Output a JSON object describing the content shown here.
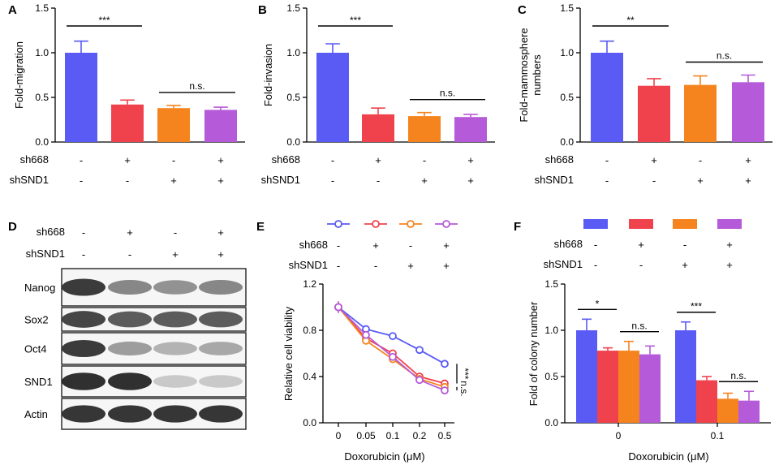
{
  "colors": {
    "blue": "#5a5af5",
    "red": "#f0424d",
    "orange": "#f5841f",
    "purple": "#b55ad8",
    "line_gray": "#6b6b6b"
  },
  "rows": {
    "sh668": "sh668",
    "shSND1": "shSND1"
  },
  "conditions": [
    {
      "sh668": "-",
      "shSND1": "-"
    },
    {
      "sh668": "+",
      "shSND1": "-"
    },
    {
      "sh668": "-",
      "shSND1": "+"
    },
    {
      "sh668": "+",
      "shSND1": "+"
    }
  ],
  "chart_data": [
    {
      "panel": "A",
      "type": "bar",
      "ylabel": "Fold-migration",
      "ylim": [
        0,
        1.5
      ],
      "yticks": [
        "0.0",
        "0.5",
        "1.0",
        "1.5"
      ],
      "values": [
        1.0,
        0.42,
        0.38,
        0.36
      ],
      "errors": [
        0.13,
        0.05,
        0.03,
        0.03
      ],
      "annotations": [
        {
          "text": "***",
          "from": 0,
          "to": 1
        },
        {
          "text": "n.s.",
          "from": 2,
          "to": 3
        }
      ]
    },
    {
      "panel": "B",
      "type": "bar",
      "ylabel": "Fold-invasion",
      "ylim": [
        0,
        1.5
      ],
      "yticks": [
        "0.0",
        "0.5",
        "1.0",
        "1.5"
      ],
      "values": [
        1.0,
        0.31,
        0.29,
        0.28
      ],
      "errors": [
        0.1,
        0.07,
        0.04,
        0.03
      ],
      "annotations": [
        {
          "text": "***",
          "from": 0,
          "to": 1
        },
        {
          "text": "n.s.",
          "from": 2,
          "to": 3
        }
      ]
    },
    {
      "panel": "C",
      "type": "bar",
      "ylabel_lines": [
        "Fold-mammosphere",
        "numbers"
      ],
      "ylim": [
        0,
        1.5
      ],
      "yticks": [
        "0.0",
        "0.5",
        "1.0",
        "1.5"
      ],
      "values": [
        1.0,
        0.63,
        0.64,
        0.67
      ],
      "errors": [
        0.13,
        0.08,
        0.1,
        0.08
      ],
      "annotations": [
        {
          "text": "**",
          "from": 0,
          "to": 1
        },
        {
          "text": "n.s.",
          "from": 2,
          "to": 3
        }
      ]
    },
    {
      "panel": "E",
      "type": "line",
      "xlabel": "Doxorubicin (μM)",
      "ylabel": "Relative cell viability",
      "categories": [
        "0",
        "0.05",
        "0.1",
        "0.2",
        "0.5"
      ],
      "ylim": [
        0,
        1.2
      ],
      "yticks": [
        "0.0",
        "0.4",
        "0.8",
        "1.2"
      ],
      "series": [
        {
          "values": [
            1.0,
            0.81,
            0.75,
            0.63,
            0.51
          ],
          "errors": [
            0.05,
            0.03,
            0.02,
            0.02,
            0.02
          ]
        },
        {
          "values": [
            1.0,
            0.73,
            0.6,
            0.4,
            0.34
          ],
          "errors": [
            0.05,
            0.03,
            0.02,
            0.02,
            0.02
          ]
        },
        {
          "values": [
            1.0,
            0.71,
            0.55,
            0.38,
            0.31
          ],
          "errors": [
            0.05,
            0.03,
            0.02,
            0.02,
            0.02
          ]
        },
        {
          "values": [
            1.0,
            0.76,
            0.57,
            0.37,
            0.28
          ],
          "errors": [
            0.05,
            0.03,
            0.02,
            0.02,
            0.02
          ]
        }
      ],
      "annotations": [
        {
          "text": "***"
        },
        {
          "text": "n.s."
        }
      ]
    },
    {
      "panel": "F",
      "type": "bar",
      "xlabel": "Doxorubicin (μM)",
      "ylabel": "Fold of colony number",
      "categories": [
        "0",
        "0.1"
      ],
      "ylim": [
        0,
        1.5
      ],
      "yticks": [
        "0.0",
        "0.5",
        "1.0",
        "1.5"
      ],
      "series": [
        {
          "values": [
            1.0,
            1.0
          ],
          "errors": [
            0.12,
            0.09
          ]
        },
        {
          "values": [
            0.78,
            0.46
          ],
          "errors": [
            0.03,
            0.04
          ]
        },
        {
          "values": [
            0.78,
            0.26
          ],
          "errors": [
            0.1,
            0.06
          ]
        },
        {
          "values": [
            0.74,
            0.24
          ],
          "errors": [
            0.09,
            0.1
          ]
        }
      ],
      "annotations": [
        {
          "text": "*",
          "group": 0,
          "from": 0,
          "to": 1
        },
        {
          "text": "n.s.",
          "group": 0,
          "from": 2,
          "to": 3
        },
        {
          "text": "***",
          "group": 1,
          "from": 0,
          "to": 1
        },
        {
          "text": "n.s.",
          "group": 1,
          "from": 2,
          "to": 3
        }
      ]
    }
  ],
  "panel_labels": [
    "A",
    "B",
    "C",
    "D",
    "E",
    "F"
  ],
  "western_blot": {
    "bands": [
      {
        "label": "Nanog",
        "intensity": [
          0.9,
          0.55,
          0.5,
          0.55
        ]
      },
      {
        "label": "Sox2",
        "intensity": [
          0.85,
          0.75,
          0.75,
          0.75
        ]
      },
      {
        "label": "Oct4",
        "intensity": [
          0.9,
          0.45,
          0.35,
          0.4
        ]
      },
      {
        "label": "SND1",
        "intensity": [
          0.95,
          0.95,
          0.25,
          0.25
        ]
      },
      {
        "label": "Actin",
        "intensity": [
          0.92,
          0.92,
          0.92,
          0.92
        ]
      }
    ]
  }
}
